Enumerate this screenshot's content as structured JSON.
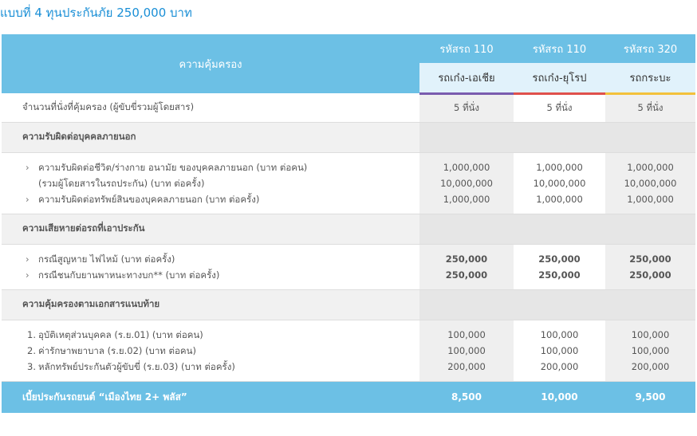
{
  "plan_title": "แบบที่ 4 ทุนประกันภัย 250,000 บาท",
  "header": {
    "coverage_label": "ความคุ้มครอง",
    "plans": [
      {
        "code": "รหัสรถ 110",
        "type": "รถเก๋ง-เอเชีย",
        "accent": "#7a5cae"
      },
      {
        "code": "รหัสรถ 110",
        "type": "รถเก๋ง-ยุโรป",
        "accent": "#e0504b"
      },
      {
        "code": "รหัสรถ 320",
        "type": "รถกระบะ",
        "accent": "#f3c13a"
      }
    ]
  },
  "seats": {
    "label": "จำนวนที่นั่งที่คุ้มครอง (ผู้ขับขี่รวมผู้โดยสาร)",
    "values": [
      "5 ที่นั่ง",
      "5 ที่นั่ง",
      "5 ที่นั่ง"
    ]
  },
  "sections": [
    {
      "title": "ความรับผิดต่อบุคคลภายนอก",
      "items": [
        {
          "marker": ">",
          "label": "ความรับผิดต่อชีวิต/ร่างกาย อนามัย ของบุคคลภายนอก (บาท ต่อคน)",
          "values": [
            "1,000,000",
            "1,000,000",
            "1,000,000"
          ]
        },
        {
          "marker": "",
          "label": "(รวมผู้โดยสารในรถประกัน) (บาท ต่อครั้ง)",
          "values": [
            "10,000,000",
            "10,000,000",
            "10,000,000"
          ]
        },
        {
          "marker": ">",
          "label": "ความรับผิดต่อทรัพย์สินของบุคคลภายนอก (บาท ต่อครั้ง)",
          "values": [
            "1,000,000",
            "1,000,000",
            "1,000,000"
          ]
        }
      ]
    },
    {
      "title": "ความเสียหายต่อรถที่เอาประกัน",
      "items": [
        {
          "marker": ">",
          "label": "กรณีสูญหาย ไฟไหม้ (บาท ต่อครั้ง)",
          "values": [
            "250,000",
            "250,000",
            "250,000"
          ],
          "bold": true
        },
        {
          "marker": ">",
          "label": "กรณีชนกับยานพาหนะทางบก** (บาท ต่อครั้ง)",
          "values": [
            "250,000",
            "250,000",
            "250,000"
          ],
          "bold": true
        }
      ]
    },
    {
      "title": "ความคุ้มครองตามเอกสารแนบท้าย",
      "items": [
        {
          "marker": "1.",
          "label": "อุบัติเหตุส่วนบุคคล (ร.ย.01) (บาท ต่อคน)",
          "values": [
            "100,000",
            "100,000",
            "100,000"
          ]
        },
        {
          "marker": "2.",
          "label": "ค่ารักษาพยาบาล (ร.ย.02) (บาท ต่อคน)",
          "values": [
            "100,000",
            "100,000",
            "100,000"
          ]
        },
        {
          "marker": "3.",
          "label": "หลักทรัพย์ประกันตัวผู้ขับขี่ (ร.ย.03) (บาท ต่อครั้ง)",
          "values": [
            "200,000",
            "200,000",
            "200,000"
          ]
        }
      ]
    }
  ],
  "footer": {
    "label": "เบี้ยประกันรถยนต์ “เมืองไทย 2+ พลัส”",
    "values": [
      "8,500",
      "10,000",
      "9,500"
    ]
  }
}
